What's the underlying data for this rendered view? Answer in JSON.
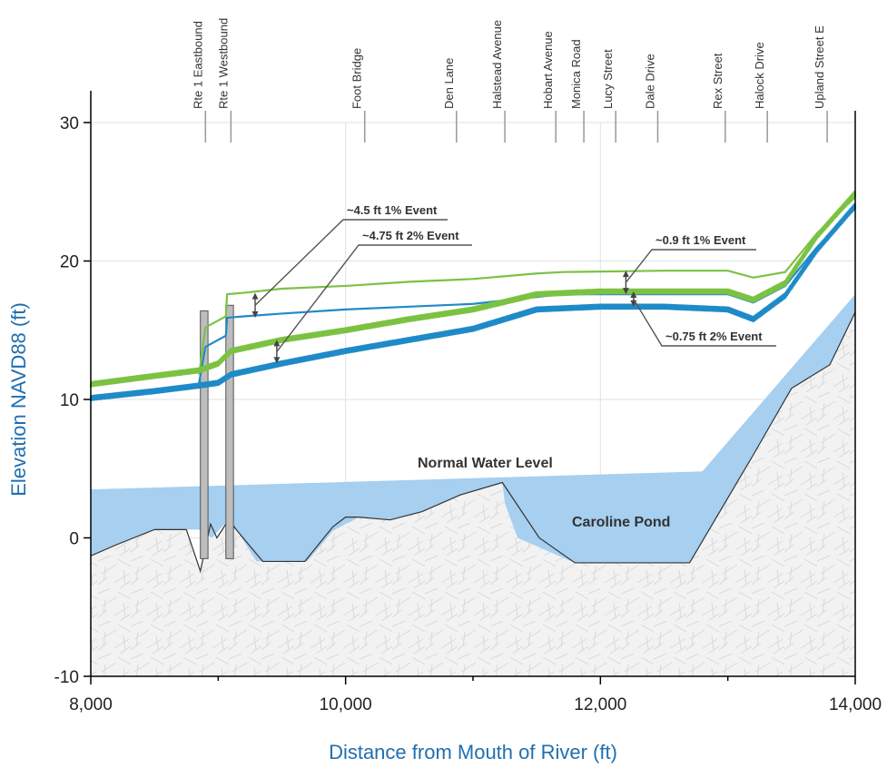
{
  "chart_data": {
    "type": "line",
    "xlabel": "Distance from Mouth of River (ft)",
    "ylabel": "Elevation NAVD88 (ft)",
    "xlim": [
      8000,
      14000
    ],
    "ylim": [
      -10,
      30
    ],
    "x_ticks": [
      "8,000",
      "10,000",
      "12,000",
      "14,000"
    ],
    "y_ticks": [
      "30",
      "20",
      "10",
      "0",
      "-10"
    ],
    "road_crossings": [
      {
        "label": "Rte 1 Eastbound",
        "x": 8900
      },
      {
        "label": "Rte 1 Westbound",
        "x": 9100
      },
      {
        "label": "Foot Bridge",
        "x": 10150
      },
      {
        "label": "Den Lane",
        "x": 10870
      },
      {
        "label": "Halstead Avenue",
        "x": 11250
      },
      {
        "label": "Hobart Avenue",
        "x": 11650
      },
      {
        "label": "Monica Road",
        "x": 11870
      },
      {
        "label": "Lucy Street",
        "x": 12120
      },
      {
        "label": "Dale Drive",
        "x": 12450
      },
      {
        "label": "Rex Street",
        "x": 12980
      },
      {
        "label": "Halock Drive",
        "x": 13310
      },
      {
        "label": "Upland Street E",
        "x": 13780
      }
    ],
    "series": [
      {
        "style": "solid",
        "color": "#7cc242",
        "points": [
          [
            8850,
            11.8
          ],
          [
            8900,
            15.2
          ],
          [
            9060,
            16.0
          ],
          [
            9070,
            17.6
          ],
          [
            9200,
            17.7
          ],
          [
            9500,
            18.0
          ],
          [
            10000,
            18.2
          ],
          [
            10500,
            18.5
          ],
          [
            11000,
            18.7
          ],
          [
            11500,
            19.1
          ],
          [
            11700,
            19.2
          ],
          [
            12500,
            19.3
          ],
          [
            13000,
            19.3
          ],
          [
            13200,
            18.8
          ],
          [
            13450,
            19.2
          ],
          [
            13700,
            22.0
          ],
          [
            14000,
            24.6
          ]
        ]
      },
      {
        "style": "solid",
        "color": "#1f8ac8",
        "points": [
          [
            8850,
            11.2
          ],
          [
            8900,
            13.8
          ],
          [
            9060,
            14.6
          ],
          [
            9070,
            15.9
          ],
          [
            9200,
            16.0
          ],
          [
            9500,
            16.2
          ],
          [
            10000,
            16.5
          ],
          [
            10500,
            16.7
          ],
          [
            11000,
            16.9
          ],
          [
            11500,
            17.4
          ],
          [
            11700,
            17.6
          ],
          [
            12500,
            17.6
          ],
          [
            13000,
            17.6
          ],
          [
            13200,
            17.0
          ],
          [
            13450,
            18.2
          ],
          [
            13700,
            21.0
          ],
          [
            14000,
            23.8
          ]
        ]
      },
      {
        "style": "wavy",
        "color": "#7cc242",
        "points": [
          [
            8000,
            11.1
          ],
          [
            8500,
            11.7
          ],
          [
            8850,
            12.1
          ],
          [
            9000,
            12.6
          ],
          [
            9100,
            13.5
          ],
          [
            9500,
            14.3
          ],
          [
            10000,
            15.0
          ],
          [
            10500,
            15.8
          ],
          [
            11000,
            16.5
          ],
          [
            11500,
            17.6
          ],
          [
            12000,
            17.8
          ],
          [
            12500,
            17.8
          ],
          [
            13000,
            17.8
          ],
          [
            13200,
            17.2
          ],
          [
            13450,
            18.4
          ],
          [
            13700,
            21.8
          ],
          [
            14000,
            24.9
          ]
        ]
      },
      {
        "style": "wavy",
        "color": "#1f8ac8",
        "points": [
          [
            8000,
            10.1
          ],
          [
            8500,
            10.6
          ],
          [
            8850,
            11.0
          ],
          [
            9000,
            11.2
          ],
          [
            9100,
            11.8
          ],
          [
            9500,
            12.6
          ],
          [
            10000,
            13.5
          ],
          [
            10500,
            14.3
          ],
          [
            11000,
            15.1
          ],
          [
            11500,
            16.5
          ],
          [
            12000,
            16.7
          ],
          [
            12500,
            16.7
          ],
          [
            13000,
            16.5
          ],
          [
            13200,
            15.8
          ],
          [
            13450,
            17.5
          ],
          [
            13700,
            20.8
          ],
          [
            14000,
            24.0
          ]
        ]
      }
    ],
    "water": [
      [
        8000,
        3.5
      ],
      [
        12800,
        4.8
      ],
      [
        14000,
        17.6
      ],
      [
        14000,
        16.3
      ],
      [
        13800,
        12.5
      ],
      [
        13500,
        10.8
      ],
      [
        12700,
        -1.8
      ],
      [
        12000,
        -1.8
      ],
      [
        11800,
        -1.8
      ],
      [
        11350,
        0.0
      ],
      [
        11250,
        2.5
      ],
      [
        11230,
        4.0
      ],
      [
        10900,
        3.1
      ],
      [
        10600,
        1.9
      ],
      [
        10350,
        1.3
      ],
      [
        10100,
        1.5
      ],
      [
        9900,
        0.5
      ],
      [
        9700,
        -1.7
      ],
      [
        9300,
        -1.7
      ],
      [
        9150,
        0.5
      ],
      [
        9050,
        1.0
      ],
      [
        8950,
        0.0
      ],
      [
        8850,
        0.6
      ],
      [
        8500,
        0.6
      ],
      [
        8000,
        -1.3
      ]
    ],
    "ground": [
      [
        8000,
        -1.3
      ],
      [
        8200,
        -0.5
      ],
      [
        8500,
        0.6
      ],
      [
        8750,
        0.6
      ],
      [
        8860,
        -2.4
      ],
      [
        8940,
        1.0
      ],
      [
        8990,
        0.0
      ],
      [
        9060,
        1.0
      ],
      [
        9110,
        1.0
      ],
      [
        9150,
        0.5
      ],
      [
        9350,
        -1.7
      ],
      [
        9680,
        -1.7
      ],
      [
        9900,
        0.8
      ],
      [
        10000,
        1.5
      ],
      [
        10100,
        1.5
      ],
      [
        10350,
        1.3
      ],
      [
        10600,
        1.9
      ],
      [
        10900,
        3.1
      ],
      [
        11230,
        4.0
      ],
      [
        11520,
        0.0
      ],
      [
        11800,
        -1.8
      ],
      [
        12700,
        -1.8
      ],
      [
        13200,
        6.0
      ],
      [
        13500,
        10.8
      ],
      [
        13800,
        12.5
      ],
      [
        14000,
        16.3
      ]
    ],
    "piers": [
      {
        "x0": 8860,
        "x1": 8920,
        "top": 16.4
      },
      {
        "x0": 9060,
        "x1": 9120,
        "top": 16.8
      }
    ],
    "annotations": [
      {
        "text": "~4.5 ft 1% Event",
        "x": 9290,
        "y1": 15.9,
        "y2": 17.7
      },
      {
        "text": "~4.75 ft 2% Event",
        "x": 9460,
        "y1": 12.6,
        "y2": 14.3
      },
      {
        "text": "~0.9 ft 1% Event",
        "x": 12200,
        "y1": 17.6,
        "y2": 19.3
      },
      {
        "text": "~0.75 ft 2% Event",
        "x": 12260,
        "y1": 16.7,
        "y2": 17.8
      }
    ],
    "region_labels": [
      "Normal Water Level",
      "Caroline Pond"
    ],
    "colors": {
      "green": "#7cc242",
      "blue": "#1f8ac8",
      "water": "#a6cff0",
      "ground": "#f1f1f1"
    }
  }
}
